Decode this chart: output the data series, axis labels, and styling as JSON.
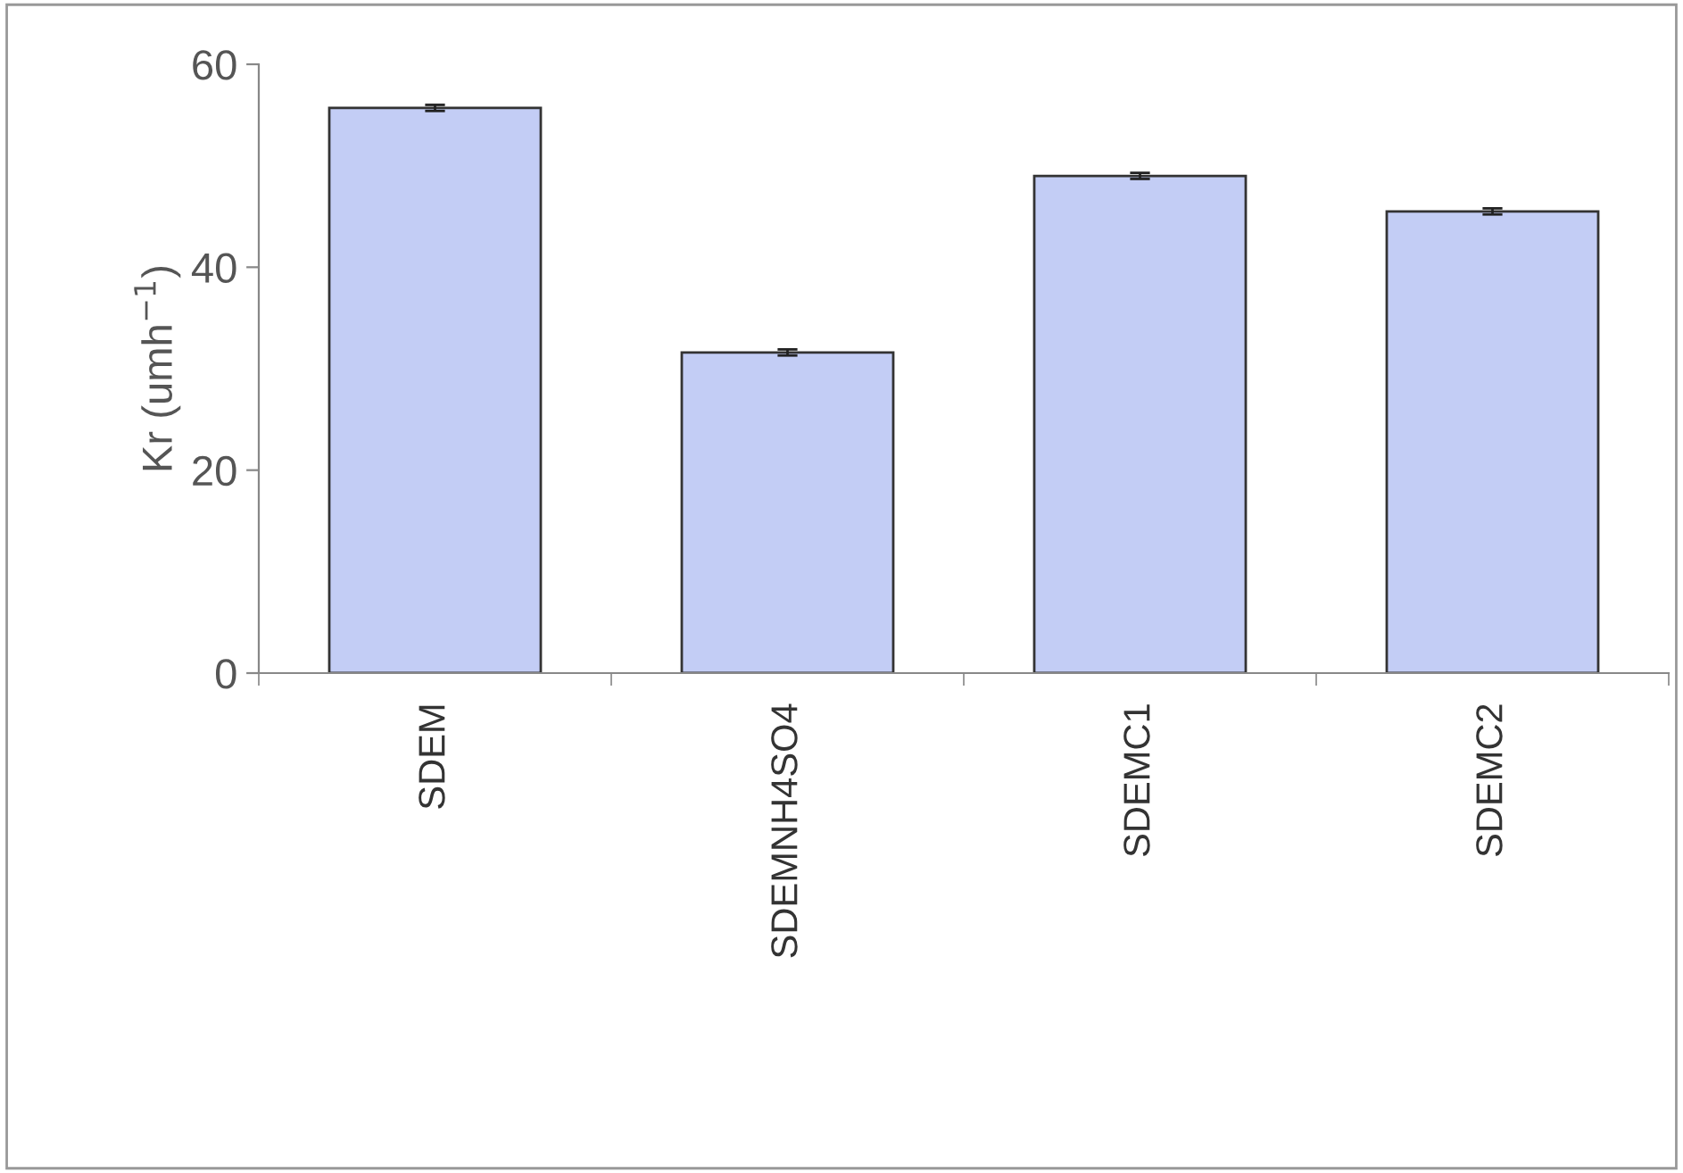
{
  "chart_data": {
    "type": "bar",
    "ylabel": "Kr (umh$^{−1}$)",
    "categories": [
      "SDEM",
      "SDEMNH4SO4",
      "SDEMC1",
      "SDEMC2"
    ],
    "values": [
      55.7,
      31.6,
      49.0,
      45.5
    ],
    "errors": [
      0.3,
      0.3,
      0.3,
      0.3
    ],
    "color": "#c3cdf5",
    "ylim": [
      0,
      60
    ],
    "yticks": [
      0,
      20,
      40,
      60
    ],
    "grid": false,
    "legend": false
  }
}
